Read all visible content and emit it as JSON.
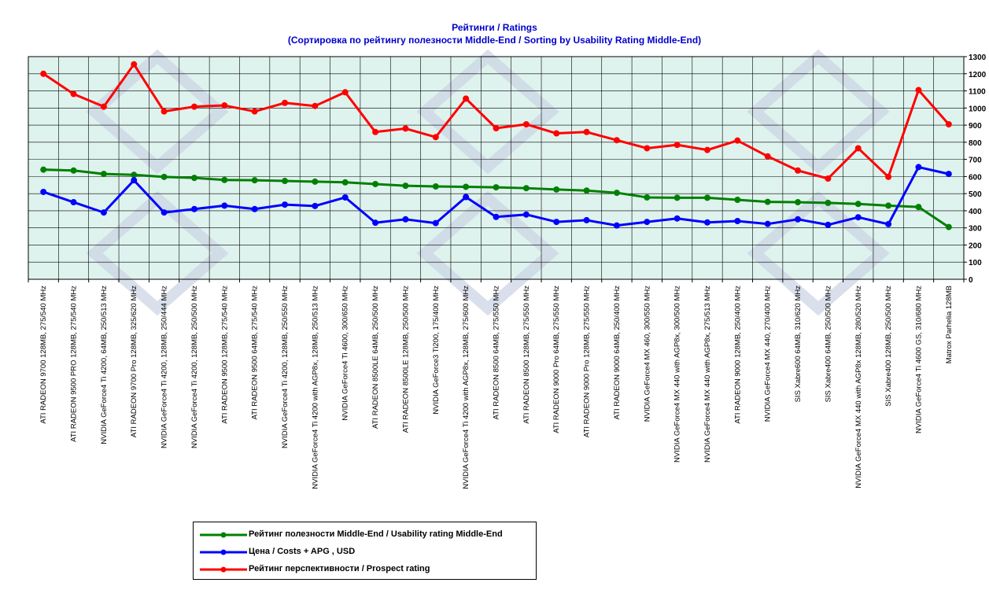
{
  "chart_data": {
    "type": "line",
    "title": "Рейтинги / Ratings",
    "subtitle": "(Сортировка по рейтингу полезности Middle-End / Sorting by Usability Rating Middle-End)",
    "ylim": [
      0,
      1300
    ],
    "yticks": [
      0,
      100,
      200,
      300,
      400,
      500,
      600,
      700,
      800,
      900,
      1000,
      1100,
      1200,
      1300
    ],
    "grid": true,
    "legend_position": "bottom",
    "background": "#dff3ee",
    "categories": [
      "ATI RADEON 9700 128MB, 275/540 MHz",
      "ATI RADEON 9500 PRO 128MB, 275/540 MHz",
      "NVIDIA GeForce4 Ti 4200, 64MB, 250/513 MHz",
      "ATI RADEON 9700 Pro 128MB, 325/620 MHz",
      "NVIDIA GeForce4 Ti 4200, 128MB, 250/444 MHz",
      "NVIDIA GeForce4 Ti 4200, 128MB, 250/500 MHz",
      "ATI RADEON 9500 128MB, 275/540 MHz",
      "ATI RADEON 9500 64MB, 275/540 MHz",
      "NVIDIA GeForce4 Ti 4200, 128MB, 250/550 MHz",
      "NVIDIA GeForce4 Ti 4200 with AGP8x, 128MB, 250/513 MHz",
      "NVIDIA GeForce4 Ti 4600, 300/650 MHz",
      "ATI RADEON 8500LE 64MB, 250/500 MHz",
      "ATI RADEON 8500LE 128MB, 250/500 MHz",
      "NVIDIA GeForce3 Ti200, 175/400 MHz",
      "NVIDIA GeForce4 Ti 4200 with AGP8x, 128MB, 275/600 MHz",
      "ATI RADEON 8500 64MB, 275/550 MHz",
      "ATI RADEON 8500 128MB, 275/550 MHz",
      "ATI RADEON 9000 Pro 64MB, 275/550 MHz",
      "ATI RADEON 9000 Pro 128MB, 275/550 MHz",
      "ATI RADEON 9000 64MB, 250/400 MHz",
      "NVIDIA GeForce4 MX 460, 300/550 MHz",
      "NVIDIA GeForce4 MX 440 with AGP8x, 300/500 MHz",
      "NVIDIA GeForce4 MX 440 with AGP8x, 275/513 MHz",
      "ATI RADEON 9000 128MB, 250/400 MHz",
      "NVIDIA GeForce4 MX 440, 270/400 MHz",
      "SIS Xabre600 64MB, 310/620 MHz",
      "SIS Xabre400 64MB, 250/500 MHz",
      "NVIDIA GeForce4 MX 440 with AGP8x 128MB, 280/520 MHz",
      "SIS Xabre400 128MB, 250/500 MHz",
      "NVIDIA GeForce4 Ti 4600 GS, 310/680 MHz",
      "Matrox Parhelia 128MB"
    ],
    "series": [
      {
        "name": "Рейтинг полезности Middle-End / Usability rating Middle-End",
        "color": "#008000",
        "values": [
          640,
          635,
          615,
          610,
          598,
          592,
          580,
          578,
          574,
          570,
          566,
          556,
          546,
          542,
          540,
          537,
          532,
          524,
          518,
          505,
          478,
          476,
          476,
          464,
          452,
          450,
          446,
          440,
          430,
          422,
          305
        ]
      },
      {
        "name": "Цена / Costs + APG , USD",
        "color": "#0000ff",
        "values": [
          510,
          450,
          390,
          578,
          390,
          410,
          430,
          410,
          436,
          428,
          478,
          330,
          350,
          328,
          480,
          364,
          378,
          335,
          345,
          314,
          335,
          355,
          332,
          340,
          323,
          350,
          318,
          362,
          322,
          655,
          615
        ]
      },
      {
        "name": "Рейтинг перспективности / Prospect rating",
        "color": "#ff0000",
        "values": [
          1200,
          1082,
          1008,
          1255,
          980,
          1008,
          1015,
          980,
          1030,
          1012,
          1092,
          860,
          880,
          830,
          1055,
          882,
          905,
          852,
          860,
          812,
          765,
          785,
          755,
          810,
          718,
          635,
          588,
          765,
          598,
          1105,
          905
        ]
      }
    ]
  }
}
